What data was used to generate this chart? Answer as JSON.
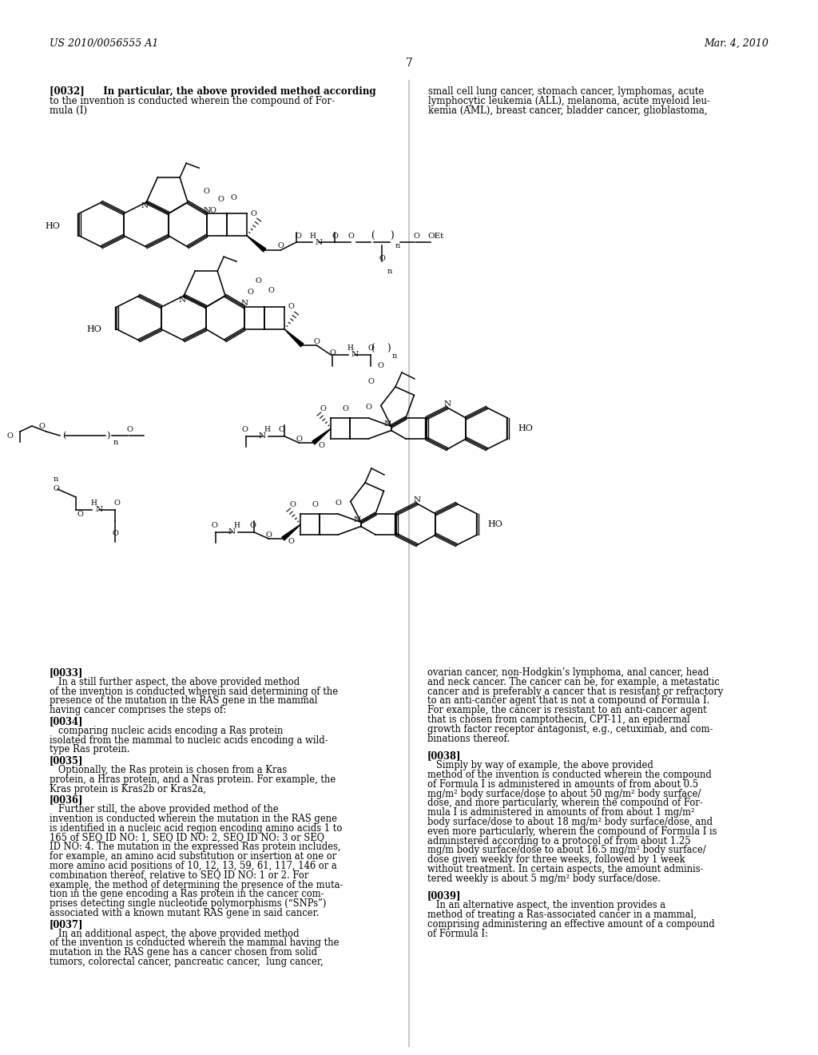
{
  "bg": "#ffffff",
  "header_left": "US 2010/0056555 A1",
  "header_right": "Mar. 4, 2010",
  "page_num": "7",
  "top_left_para": "[0032]  In particular, the above provided method according\nto the invention is conducted wherein the compound of For-\nmula (I)",
  "top_right_para": "small cell lung cancer, stomach cancer, lymphomas, acute\nlymphocytic leukemia (ALL), melanoma, acute myeloid leu-\nkemia (AML), breast cancer, bladder cancer, glioblastoma,",
  "para33_l1": "[0033]",
  "para33_l2": "   In a still further aspect, the above provided method",
  "para33_l3": "of the invention is conducted wherein said determining of the",
  "para33_l4": "presence of the mutation in the RAS gene in the mammal",
  "para33_l5": "having cancer comprises the steps of:",
  "para34_l1": "[0034]",
  "para34_l2": "   comparing nucleic acids encoding a Ras protein",
  "para34_l3": "isolated from the mammal to nucleic acids encoding a wild-",
  "para34_l4": "type Ras protein.",
  "para35_l1": "[0035]",
  "para35_l2": "   Optionally, the Ras protein is chosen from a Kras",
  "para35_l3": "protein, a Hras protein, and a Nras protein. For example, the",
  "para35_l4": "Kras protein is Kras2b or Kras2a,",
  "para36_l1": "[0036]",
  "para36_l2": "   Further still, the above provided method of the",
  "para36_l3": "invention is conducted wherein the mutation in the RAS gene",
  "para36_l4": "is identified in a nucleic acid region encoding amino acids 1 to",
  "para36_l5": "165 of SEQ ID NO: 1, SEQ ID NO: 2, SEQ ID NO: 3 or SEQ",
  "para36_l6": "ID NO: 4. The mutation in the expressed Ras protein includes,",
  "para36_l7": "for example, an amino acid substitution or insertion at one or",
  "para36_l8": "more amino acid positions of 10, 12, 13, 59, 61, 117, 146 or a",
  "para36_l9": "combination thereof, relative to SEQ ID NO: 1 or 2. For",
  "para36_l10": "example, the method of determining the presence of the muta-",
  "para36_l11": "tion in the gene encoding a Ras protein in the cancer com-",
  "para36_l12": "prises detecting single nucleotide polymorphisms (“SNPs”)",
  "para36_l13": "associated with a known mutant RAS gene in said cancer.",
  "para37_l1": "[0037]",
  "para37_l2": "   In an additional aspect, the above provided method",
  "para37_l3": "of the invention is conducted wherein the mammal having the",
  "para37_l4": "mutation in the RAS gene has a cancer chosen from solid",
  "para37_l5": "tumors, colorectal cancer, pancreatic cancer,  lung cancer,",
  "para33r_l1": "ovarian cancer, non-Hodgkin’s lymphoma, anal cancer, head",
  "para33r_l2": "and neck cancer. The cancer can be, for example, a metastatic",
  "para33r_l3": "cancer and is preferably a cancer that is resistant or refractory",
  "para33r_l4": "to an anti-cancer agent that is not a compound of Formula I.",
  "para33r_l5": "For example, the cancer is resistant to an anti-cancer agent",
  "para33r_l6": "that is chosen from camptothecin, CPT-11, an epidermal",
  "para33r_l7": "growth factor receptor antagonist, e.g., cetuximab, and com-",
  "para33r_l8": "binations thereof.",
  "para38_l1": "[0038]",
  "para38_l2": "   Simply by way of example, the above provided",
  "para38_l3": "method of the invention is conducted wherein the compound",
  "para38_l4": "of Formula I is administered in amounts of from about 0.5",
  "para38_l5": "mg/m² body surface/dose to about 50 mg/m² body surface/",
  "para38_l6": "dose, and more particularly, wherein the compound of For-",
  "para38_l7": "mula I is administered in amounts of from about 1 mg/m²",
  "para38_l8": "body surface/dose to about 18 mg/m² body surface/dose, and",
  "para38_l9": "even more particularly, wherein the compound of Formula I is",
  "para38_l10": "administered according to a protocol of from about 1.25",
  "para38_l11": "mg/m body surface/dose to about 16.5 mg/m² body surface/",
  "para38_l12": "dose given weekly for three weeks, followed by 1 week",
  "para38_l13": "without treatment. In certain aspects, the amount adminis-",
  "para38_l14": "tered weekly is about 5 mg/m² body surface/dose.",
  "para39_l1": "[0039]",
  "para39_l2": "   In an alternative aspect, the invention provides a",
  "para39_l3": "method of treating a Ras-associated cancer in a mammal,",
  "para39_l4": "comprising administering an effective amount of a compound",
  "para39_l5": "of Formula I:"
}
